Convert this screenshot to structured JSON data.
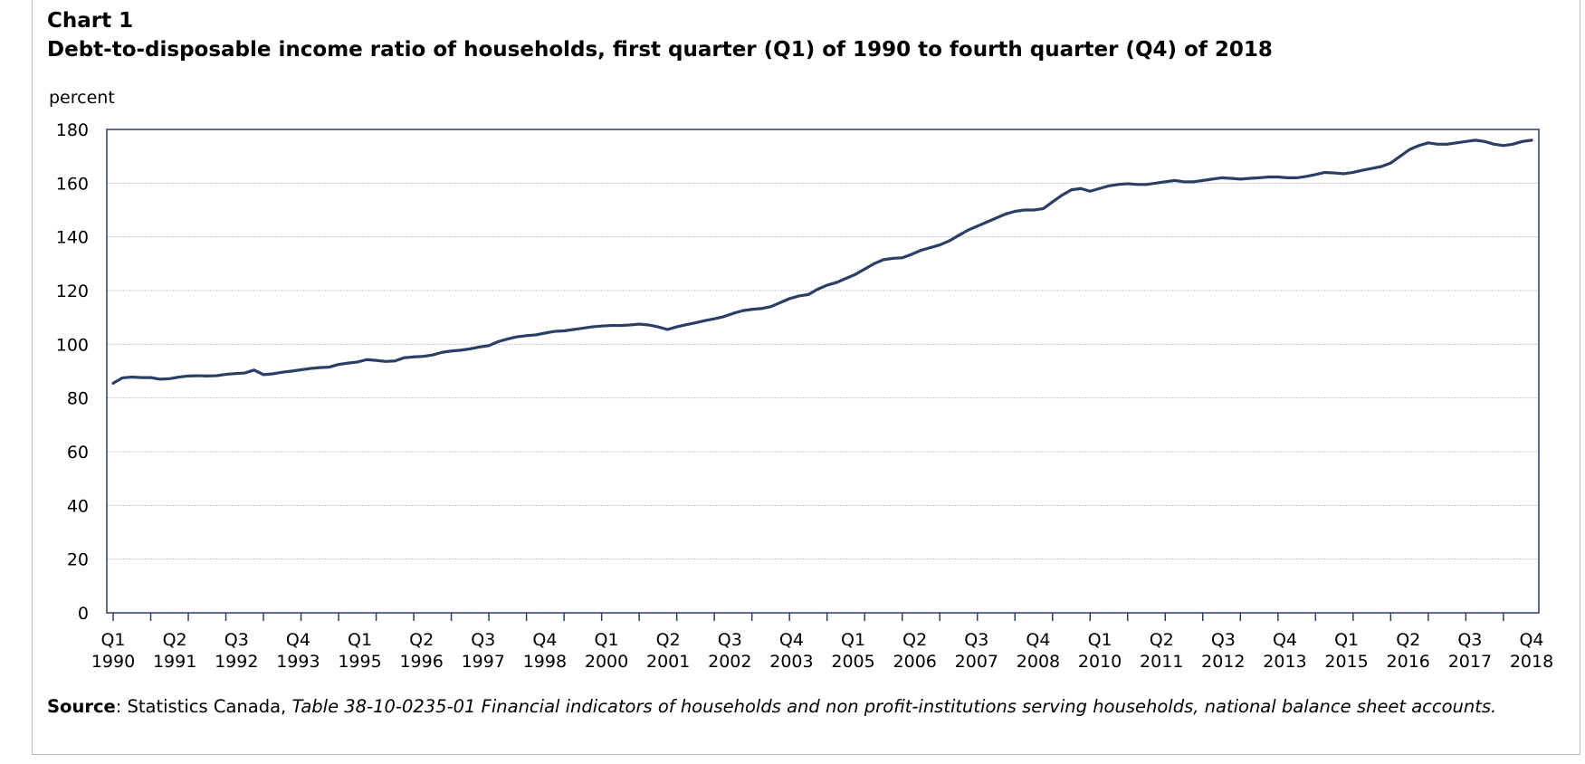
{
  "chart_label": "Chart 1",
  "title": "Debt-to-disposable income ratio of households, first quarter (Q1) of 1990 to fourth quarter (Q4) of 2018",
  "source": {
    "label": "Source",
    "prefix": ": Statistics Canada, ",
    "reference": "Table 38-10-0235-01 Financial indicators of households and non profit-institutions  serving households, national balance sheet accounts."
  },
  "colors": {
    "line": "#2b3f66",
    "grid": "#c8c8c8",
    "axis": "#2b3f66"
  },
  "chart_data": {
    "type": "line",
    "title": "Debt-to-disposable income ratio of households, first quarter (Q1) of 1990 to fourth quarter (Q4) of 2018",
    "xlabel": "",
    "ylabel": "percent",
    "ylim": [
      0,
      180
    ],
    "yticks": [
      0,
      20,
      40,
      60,
      80,
      100,
      120,
      140,
      160,
      180
    ],
    "grid": true,
    "legend": "none",
    "x_start": "1990 Q1",
    "x_end": "2018 Q4",
    "x_tick_labels": [
      {
        "quarter": "Q1",
        "year": "1990"
      },
      {
        "quarter": "Q2",
        "year": "1991"
      },
      {
        "quarter": "Q3",
        "year": "1992"
      },
      {
        "quarter": "Q4",
        "year": "1993"
      },
      {
        "quarter": "Q1",
        "year": "1995"
      },
      {
        "quarter": "Q2",
        "year": "1996"
      },
      {
        "quarter": "Q3",
        "year": "1997"
      },
      {
        "quarter": "Q4",
        "year": "1998"
      },
      {
        "quarter": "Q1",
        "year": "2000"
      },
      {
        "quarter": "Q2",
        "year": "2001"
      },
      {
        "quarter": "Q3",
        "year": "2002"
      },
      {
        "quarter": "Q4",
        "year": "2003"
      },
      {
        "quarter": "Q1",
        "year": "2005"
      },
      {
        "quarter": "Q2",
        "year": "2006"
      },
      {
        "quarter": "Q3",
        "year": "2007"
      },
      {
        "quarter": "Q4",
        "year": "2008"
      },
      {
        "quarter": "Q1",
        "year": "2010"
      },
      {
        "quarter": "Q2",
        "year": "2011"
      },
      {
        "quarter": "Q3",
        "year": "2012"
      },
      {
        "quarter": "Q4",
        "year": "2013"
      },
      {
        "quarter": "Q1",
        "year": "2015"
      },
      {
        "quarter": "Q2",
        "year": "2016"
      },
      {
        "quarter": "Q3",
        "year": "2017"
      },
      {
        "quarter": "Q4",
        "year": "2018"
      }
    ],
    "series": [
      {
        "values": [
          85.5,
          87.5,
          87.8,
          87.6,
          87.6,
          87.0,
          87.2,
          87.8,
          88.2,
          88.3,
          88.2,
          88.3,
          88.8,
          89.1,
          89.3,
          90.4,
          88.7,
          89.0,
          89.6,
          90.0,
          90.5,
          91.0,
          91.3,
          91.5,
          92.5,
          93.0,
          93.4,
          94.3,
          94.0,
          93.6,
          93.8,
          95.0,
          95.3,
          95.5,
          96.0,
          97.0,
          97.5,
          97.8,
          98.3,
          99.0,
          99.5,
          101.0,
          102.0,
          102.8,
          103.2,
          103.5,
          104.2,
          104.8,
          105.0,
          105.5,
          106.0,
          106.5,
          106.8,
          107.0,
          107.0,
          107.2,
          107.5,
          107.2,
          106.5,
          105.5,
          106.5,
          107.3,
          108.0,
          108.8,
          109.5,
          110.3,
          111.5,
          112.5,
          113.0,
          113.3,
          114.0,
          115.5,
          117.0,
          118.0,
          118.5,
          120.5,
          122.0,
          123.0,
          124.5,
          126.0,
          128.0,
          130.0,
          131.5,
          132.0,
          132.2,
          133.5,
          135.0,
          136.0,
          137.0,
          138.5,
          140.5,
          142.5,
          144.0,
          145.5,
          147.0,
          148.5,
          149.5,
          150.0,
          150.0,
          150.5,
          153.0,
          155.5,
          157.5,
          158.0,
          157.0,
          158.0,
          159.0,
          159.5,
          159.8,
          159.5,
          159.5,
          160.0,
          160.5,
          161.0,
          160.5,
          160.5,
          161.0,
          161.5,
          162.0,
          161.8,
          161.5,
          161.8,
          162.0,
          162.3,
          162.3,
          162.0,
          162.0,
          162.5,
          163.2,
          164.0,
          163.8,
          163.5,
          164.0,
          164.8,
          165.5,
          166.2,
          167.5,
          170.0,
          172.5,
          174.0,
          175.0,
          174.5,
          174.5,
          175.0,
          175.5,
          176.0,
          175.5,
          174.5,
          174.0,
          174.5,
          175.5,
          176.0
        ]
      }
    ]
  }
}
